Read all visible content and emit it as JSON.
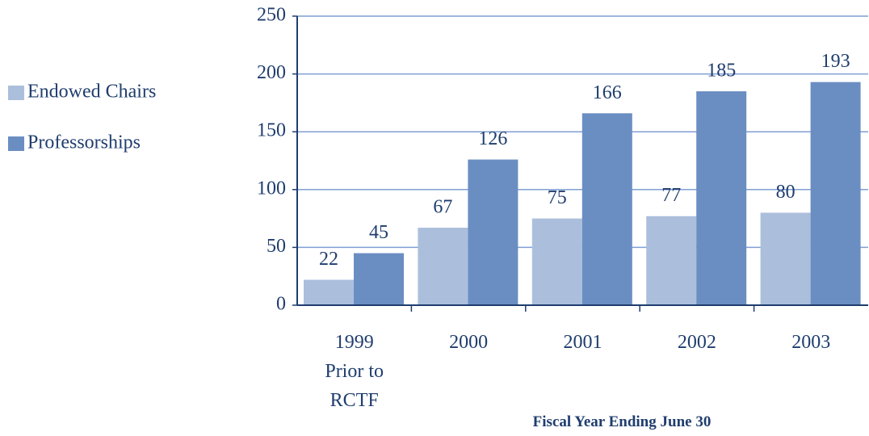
{
  "chart_data": {
    "type": "bar",
    "x_label": "Fiscal Year Ending June 30",
    "categories": [
      "1999\nPrior to\nRCTF",
      "2000",
      "2001",
      "2002",
      "2003"
    ],
    "series": [
      {
        "name": "Endowed Chairs",
        "color": "#abbfdc",
        "values": [
          22,
          67,
          75,
          77,
          80
        ]
      },
      {
        "name": "Professorships",
        "color": "#6b8ec2",
        "values": [
          45,
          126,
          166,
          185,
          193
        ]
      }
    ],
    "ylim": [
      0,
      250
    ],
    "yticks": [
      0,
      50,
      100,
      150,
      200,
      250
    ],
    "grid": true,
    "legend": "left"
  }
}
